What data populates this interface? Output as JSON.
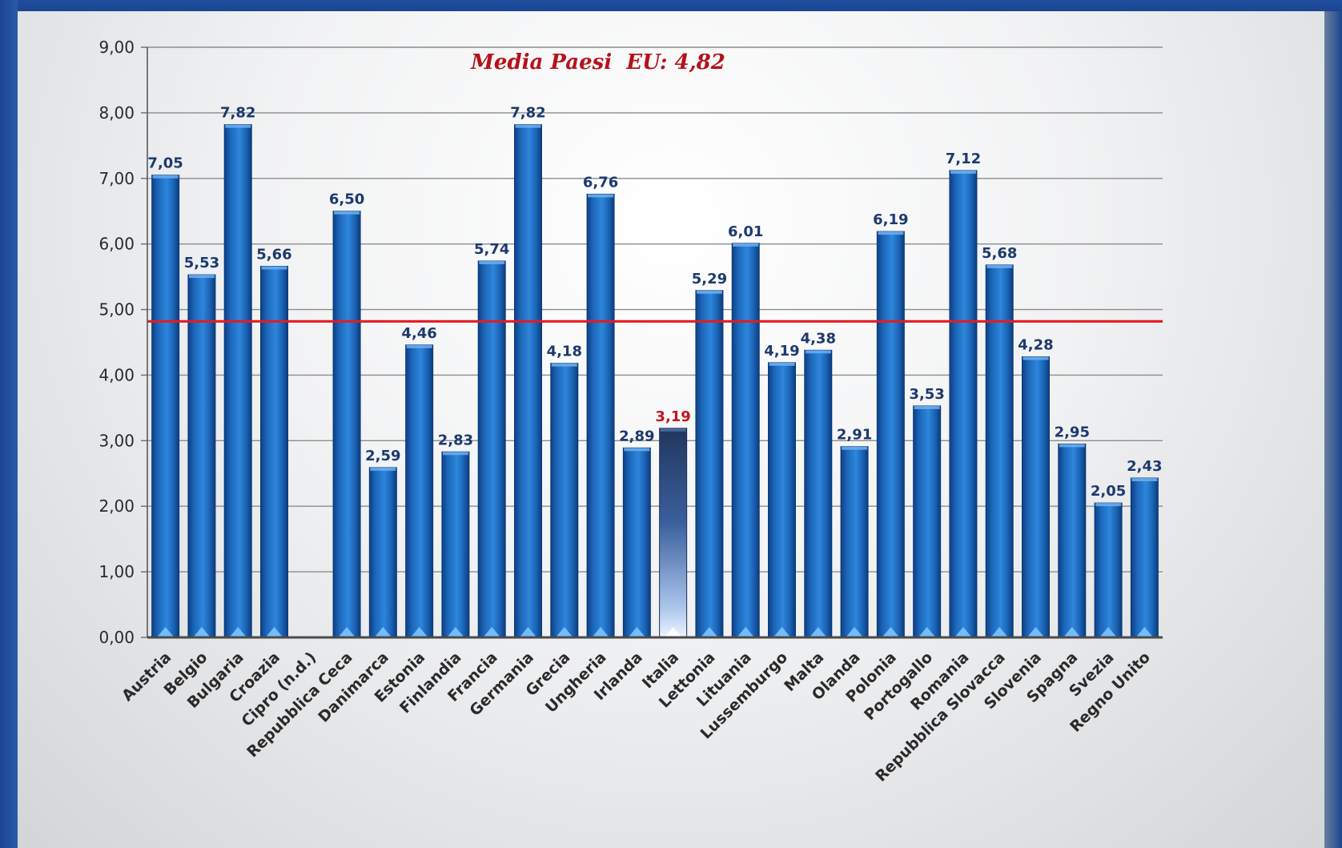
{
  "chart_data": {
    "type": "bar",
    "title": "",
    "xlabel": "",
    "ylabel": "",
    "ylim": [
      0,
      9
    ],
    "ytick_labels": [
      "0,00",
      "1,00",
      "2,00",
      "3,00",
      "4,00",
      "5,00",
      "6,00",
      "7,00",
      "8,00",
      "9,00"
    ],
    "grid": true,
    "categories": [
      "Austria",
      "Belgio",
      "Bulgaria",
      "Croazia",
      "Cipro (n.d.)",
      "Repubblica Ceca",
      "Danimarca",
      "Estonia",
      "Finlandia",
      "Francia",
      "Germania",
      "Grecia",
      "Ungheria",
      "Irlanda",
      "Italia",
      "Lettonia",
      "Lituania",
      "Lussemburgo",
      "Malta",
      "Olanda",
      "Polonia",
      "Portogallo",
      "Romania",
      "Repubblica Slovacca",
      "Slovenia",
      "Spagna",
      "Svezia",
      "Regno Unito"
    ],
    "values": [
      7.05,
      5.53,
      7.82,
      5.66,
      null,
      6.5,
      2.59,
      4.46,
      2.83,
      5.74,
      7.82,
      4.18,
      6.76,
      2.89,
      3.19,
      5.29,
      6.01,
      4.19,
      4.38,
      2.91,
      6.19,
      3.53,
      7.12,
      5.68,
      4.28,
      2.95,
      2.05,
      2.43
    ],
    "value_labels": [
      "7,05",
      "5,53",
      "7,82",
      "5,66",
      "",
      "6,50",
      "2,59",
      "4,46",
      "2,83",
      "5,74",
      "7,82",
      "4,18",
      "6,76",
      "2,89",
      "3,19",
      "5,29",
      "6,01",
      "4,19",
      "4,38",
      "2,91",
      "6,19",
      "3,53",
      "7,12",
      "5,68",
      "4,28",
      "2,95",
      "2,05",
      "2,43"
    ],
    "highlight_category": "Italia",
    "reference_line": {
      "label": "Media Paesi  EU: 4,82",
      "value": 4.82,
      "color": "#e31b23"
    },
    "colors": {
      "bar": "#1f6fc4",
      "bar_highlight": "#2c4a7e",
      "label": "#1d3a6e",
      "label_highlight": "#c0161c"
    }
  }
}
